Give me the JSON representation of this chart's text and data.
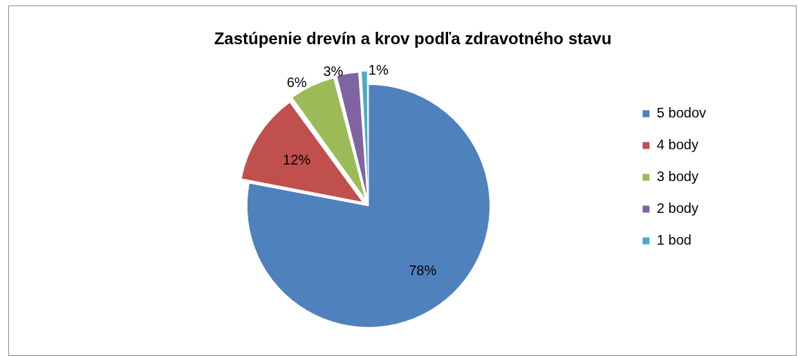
{
  "chart_data": {
    "type": "pie",
    "title": "Zastúpenie drevín a krov podľa zdravotného stavu",
    "categories": [
      "5 bodov",
      "4 body",
      "3 body",
      "2 body",
      "1 bod"
    ],
    "values": [
      78,
      12,
      6,
      3,
      1
    ],
    "colors": [
      "#4f81bd",
      "#c0504d",
      "#9bbb59",
      "#8064a2",
      "#4bacc6"
    ],
    "value_labels": [
      "78%",
      "12%",
      "6%",
      "3%",
      "1%"
    ],
    "legend": "right"
  }
}
